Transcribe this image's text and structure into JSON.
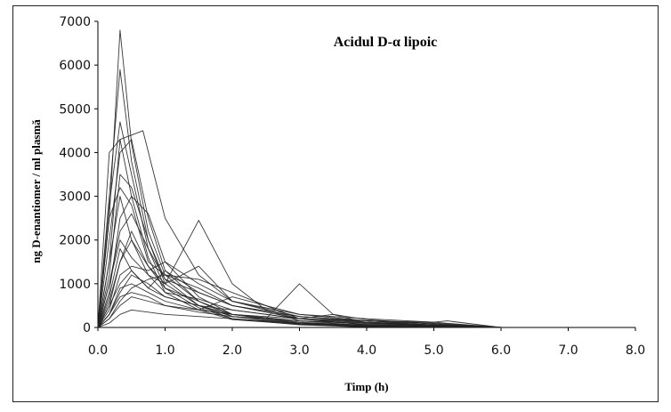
{
  "chart_data": {
    "type": "line",
    "title": "Acidul D-α lipoic",
    "xlabel": "Timp (h)",
    "ylabel": "ng D-enantiomer / ml plasmă",
    "xlim": [
      0.0,
      8.0
    ],
    "ylim": [
      0,
      7000
    ],
    "xticks": [
      "0.0",
      "1.0",
      "2.0",
      "3.0",
      "4.0",
      "5.0",
      "6.0",
      "7.0",
      "8.0"
    ],
    "yticks": [
      "0",
      "1000",
      "2000",
      "3000",
      "4000",
      "5000",
      "6000",
      "7000"
    ],
    "grid": false,
    "legend": "none",
    "series": [
      {
        "x": [
          0,
          0.17,
          0.33,
          0.5,
          0.75,
          1.0,
          1.5,
          2.0,
          3.0,
          4.0,
          6.0
        ],
        "y": [
          0,
          2500,
          6800,
          4200,
          2200,
          1200,
          600,
          300,
          120,
          40,
          0
        ]
      },
      {
        "x": [
          0,
          0.17,
          0.33,
          0.5,
          0.75,
          1.0,
          1.5,
          2.0,
          3.0,
          4.0,
          6.0
        ],
        "y": [
          0,
          3000,
          5900,
          3800,
          2000,
          1000,
          500,
          250,
          100,
          30,
          0
        ]
      },
      {
        "x": [
          0,
          0.17,
          0.33,
          0.5,
          0.75,
          1.0,
          1.5,
          2.0,
          3.0,
          4.0,
          6.0
        ],
        "y": [
          0,
          2800,
          4700,
          3500,
          1800,
          900,
          450,
          200,
          80,
          20,
          0
        ]
      },
      {
        "x": [
          0,
          0.17,
          0.33,
          0.5,
          0.75,
          1.0,
          1.5,
          2.0,
          3.0,
          4.0,
          6.0
        ],
        "y": [
          0,
          4000,
          4300,
          3000,
          1600,
          800,
          400,
          180,
          70,
          20,
          0
        ]
      },
      {
        "x": [
          0,
          0.17,
          0.33,
          0.67,
          1.0,
          1.5,
          2.0,
          3.0,
          4.0,
          6.0
        ],
        "y": [
          0,
          1500,
          4300,
          4500,
          2500,
          1200,
          600,
          200,
          60,
          0
        ]
      },
      {
        "x": [
          0,
          0.17,
          0.33,
          0.5,
          0.75,
          1.0,
          1.5,
          2.0,
          3.0,
          4.0,
          6.0
        ],
        "y": [
          0,
          2000,
          4000,
          4300,
          2500,
          1300,
          600,
          250,
          80,
          20,
          0
        ]
      },
      {
        "x": [
          0,
          0.17,
          0.33,
          0.5,
          0.75,
          1.0,
          1.5,
          2.0,
          3.0,
          4.0,
          6.0
        ],
        "y": [
          0,
          1200,
          3500,
          3200,
          2000,
          1100,
          500,
          200,
          60,
          10,
          0
        ]
      },
      {
        "x": [
          0,
          0.17,
          0.33,
          0.5,
          0.75,
          1.0,
          1.5,
          2.0,
          3.0,
          4.0,
          6.0
        ],
        "y": [
          0,
          800,
          2500,
          3000,
          2600,
          1500,
          700,
          300,
          100,
          30,
          0
        ]
      },
      {
        "x": [
          0,
          0.17,
          0.33,
          0.5,
          0.75,
          1.0,
          1.5,
          2.0,
          2.5,
          3.0,
          4.0,
          6.0
        ],
        "y": [
          0,
          500,
          1500,
          2000,
          1200,
          1000,
          2450,
          1000,
          400,
          150,
          40,
          0
        ]
      },
      {
        "x": [
          0,
          0.17,
          0.33,
          0.5,
          0.75,
          1.0,
          1.5,
          2.0,
          2.5,
          3.0,
          3.5,
          4.0,
          6.0
        ],
        "y": [
          0,
          300,
          800,
          1200,
          1000,
          700,
          500,
          300,
          200,
          1000,
          300,
          100,
          0
        ]
      },
      {
        "x": [
          0,
          0.17,
          0.33,
          0.5,
          0.75,
          1.0,
          1.5,
          2.0,
          3.0,
          4.0,
          5.0,
          6.0
        ],
        "y": [
          0,
          1000,
          2200,
          2600,
          1800,
          1100,
          800,
          500,
          250,
          150,
          80,
          0
        ]
      },
      {
        "x": [
          0,
          0.17,
          0.33,
          0.5,
          0.75,
          1.0,
          1.5,
          2.0,
          3.0,
          4.0,
          5.0,
          6.0
        ],
        "y": [
          0,
          600,
          1500,
          2200,
          1400,
          1000,
          1400,
          600,
          300,
          200,
          120,
          0
        ]
      },
      {
        "x": [
          0,
          0.17,
          0.33,
          0.5,
          0.75,
          1.0,
          1.5,
          2.0,
          3.0,
          4.0,
          5.0,
          6.0
        ],
        "y": [
          0,
          400,
          1200,
          1400,
          1300,
          1500,
          1000,
          600,
          250,
          150,
          100,
          0
        ]
      },
      {
        "x": [
          0,
          0.17,
          0.33,
          0.5,
          0.75,
          1.0,
          1.5,
          2.0,
          3.0,
          3.5,
          4.0,
          5.0,
          6.0
        ],
        "y": [
          0,
          200,
          600,
          900,
          1100,
          1200,
          900,
          500,
          200,
          300,
          180,
          80,
          0
        ]
      },
      {
        "x": [
          0,
          0.17,
          0.33,
          0.5,
          0.75,
          1.0,
          1.5,
          2.0,
          3.0,
          4.0,
          5.0,
          6.0
        ],
        "y": [
          0,
          1500,
          3000,
          2000,
          1400,
          900,
          600,
          300,
          150,
          80,
          40,
          0
        ]
      },
      {
        "x": [
          0,
          0.17,
          0.33,
          0.5,
          0.75,
          1.0,
          1.5,
          2.0,
          3.0,
          4.0,
          5.0,
          6.0
        ],
        "y": [
          0,
          700,
          1800,
          1300,
          900,
          700,
          500,
          400,
          200,
          120,
          60,
          0
        ]
      },
      {
        "x": [
          0,
          0.17,
          0.33,
          0.5,
          0.75,
          1.0,
          1.5,
          2.0,
          3.0,
          4.0,
          5.0,
          6.0
        ],
        "y": [
          0,
          300,
          900,
          1000,
          800,
          600,
          400,
          700,
          300,
          150,
          50,
          0
        ]
      },
      {
        "x": [
          0,
          0.17,
          0.33,
          0.5,
          0.75,
          1.0,
          1.5,
          2.0,
          3.0,
          4.0,
          5.0,
          6.0
        ],
        "y": [
          0,
          200,
          500,
          700,
          600,
          500,
          350,
          250,
          150,
          100,
          50,
          0
        ]
      },
      {
        "x": [
          0,
          0.17,
          0.33,
          0.5,
          0.75,
          1.0,
          1.5,
          2.0,
          3.0,
          4.0,
          5.0,
          6.0
        ],
        "y": [
          0,
          100,
          300,
          400,
          350,
          300,
          250,
          200,
          100,
          60,
          30,
          0
        ]
      },
      {
        "x": [
          0,
          0.17,
          0.33,
          0.5,
          0.75,
          1.0,
          1.5,
          2.0,
          2.5,
          3.0,
          4.0,
          6.0
        ],
        "y": [
          0,
          2500,
          3200,
          2800,
          1500,
          1200,
          1100,
          800,
          500,
          200,
          60,
          0
        ]
      },
      {
        "x": [
          0,
          0.17,
          0.33,
          0.5,
          0.75,
          1.0,
          1.5,
          2.0,
          3.0,
          4.0,
          5.0,
          6.0
        ],
        "y": [
          0,
          1000,
          2000,
          1600,
          1200,
          800,
          650,
          400,
          200,
          100,
          50,
          0
        ]
      },
      {
        "x": [
          0,
          0.17,
          0.33,
          0.5,
          0.75,
          1.0,
          1.5,
          2.0,
          3.0,
          4.0,
          5.0,
          6.0
        ],
        "y": [
          0,
          500,
          1000,
          1300,
          900,
          1300,
          800,
          500,
          250,
          120,
          60,
          0
        ]
      },
      {
        "x": [
          0,
          0.17,
          0.33,
          0.5,
          0.75,
          1.0,
          1.5,
          2.0,
          3.0,
          4.0,
          5.0,
          5.2,
          6.0
        ],
        "y": [
          0,
          300,
          700,
          800,
          700,
          500,
          400,
          300,
          200,
          150,
          120,
          150,
          0
        ]
      }
    ]
  }
}
